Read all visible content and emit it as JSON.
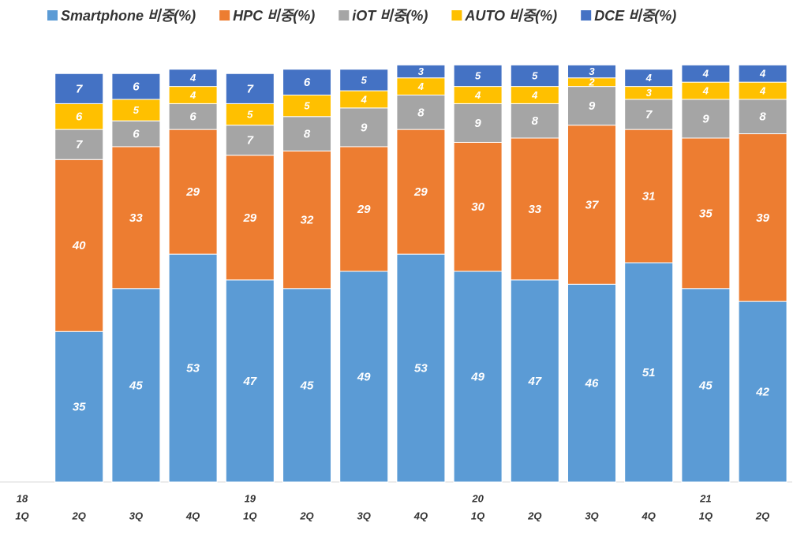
{
  "chart_data": {
    "type": "stacked_bar",
    "categories": [
      "1Q",
      "2Q",
      "3Q",
      "4Q",
      "1Q",
      "2Q",
      "3Q",
      "4Q",
      "1Q",
      "2Q",
      "3Q",
      "4Q",
      "1Q",
      "2Q"
    ],
    "year_labels": [
      "18",
      null,
      null,
      null,
      "19",
      null,
      null,
      null,
      "20",
      null,
      null,
      null,
      "21",
      null
    ],
    "series": [
      {
        "name": "Smartphone 비중(%)",
        "color": "#5b9bd5",
        "values": [
          null,
          35,
          45,
          53,
          47,
          45,
          49,
          53,
          49,
          47,
          46,
          51,
          45,
          42
        ]
      },
      {
        "name": "HPC 비중(%)",
        "color": "#ed7d31",
        "values": [
          null,
          40,
          33,
          29,
          29,
          32,
          29,
          29,
          30,
          33,
          37,
          31,
          35,
          39
        ]
      },
      {
        "name": "iOT 비중(%)",
        "color": "#a5a5a5",
        "values": [
          null,
          7,
          6,
          6,
          7,
          8,
          9,
          8,
          9,
          8,
          9,
          7,
          9,
          8
        ]
      },
      {
        "name": "AUTO 비중(%)",
        "color": "#ffc000",
        "values": [
          null,
          6,
          5,
          4,
          5,
          5,
          4,
          4,
          4,
          4,
          2,
          3,
          4,
          4
        ]
      },
      {
        "name": "DCE 비중(%)",
        "color": "#4472c4",
        "values": [
          null,
          7,
          6,
          4,
          7,
          6,
          5,
          3,
          5,
          5,
          3,
          4,
          4,
          4
        ]
      }
    ],
    "ylim": [
      0,
      100
    ],
    "legend": "top"
  }
}
